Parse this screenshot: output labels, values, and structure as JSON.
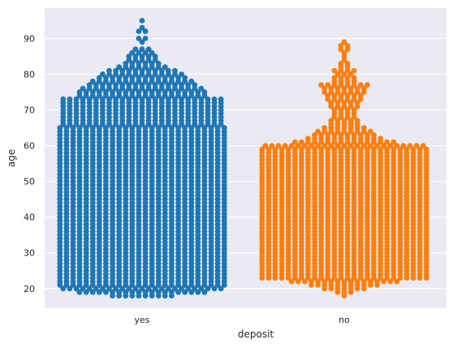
{
  "chart_data": {
    "type": "scatter",
    "subtype": "swarm",
    "title": "",
    "xlabel": "deposit",
    "ylabel": "age",
    "categories": [
      "yes",
      "no"
    ],
    "ylim": [
      14.5,
      98.5
    ],
    "yticks": [
      20,
      30,
      40,
      50,
      60,
      70,
      80,
      90
    ],
    "grid": true,
    "style": "seaborn-darkgrid",
    "background_color": "#eaeaf2",
    "series": [
      {
        "category": "yes",
        "color": "#1f77b4",
        "age_min": 18,
        "age_max": 95,
        "profile": [
          [
            18,
            10
          ],
          [
            19,
            20
          ],
          [
            20,
            25
          ],
          [
            21,
            26
          ],
          [
            22,
            26
          ],
          [
            60,
            26
          ],
          [
            70,
            25
          ],
          [
            73,
            25
          ],
          [
            74,
            20
          ],
          [
            76,
            19
          ],
          [
            77,
            17
          ],
          [
            78,
            16
          ],
          [
            79,
            14
          ],
          [
            80,
            13
          ],
          [
            82,
            8
          ],
          [
            83,
            6
          ],
          [
            84,
            5
          ],
          [
            86,
            4
          ],
          [
            87,
            3
          ],
          [
            88,
            0
          ],
          [
            90,
            2
          ],
          [
            91,
            0
          ],
          [
            92,
            2
          ],
          [
            93,
            1
          ],
          [
            94,
            0
          ],
          [
            95,
            1
          ]
        ]
      },
      {
        "category": "no",
        "color": "#ff7f0e",
        "age_min": 18,
        "age_max": 89,
        "profile": [
          [
            18,
            1
          ],
          [
            19,
            3
          ],
          [
            20,
            7
          ],
          [
            21,
            11
          ],
          [
            22,
            17
          ],
          [
            23,
            26
          ],
          [
            59,
            26
          ],
          [
            60,
            25
          ],
          [
            61,
            16
          ],
          [
            62,
            12
          ],
          [
            63,
            10
          ],
          [
            65,
            7
          ],
          [
            66,
            5
          ],
          [
            68,
            4
          ],
          [
            70,
            4
          ],
          [
            72,
            5
          ],
          [
            74,
            6
          ],
          [
            77,
            8
          ],
          [
            78,
            4
          ],
          [
            80,
            3
          ],
          [
            81,
            4
          ],
          [
            82,
            2
          ],
          [
            84,
            1
          ],
          [
            86,
            1
          ],
          [
            87,
            2
          ],
          [
            88,
            2
          ],
          [
            89,
            1
          ]
        ]
      }
    ]
  }
}
